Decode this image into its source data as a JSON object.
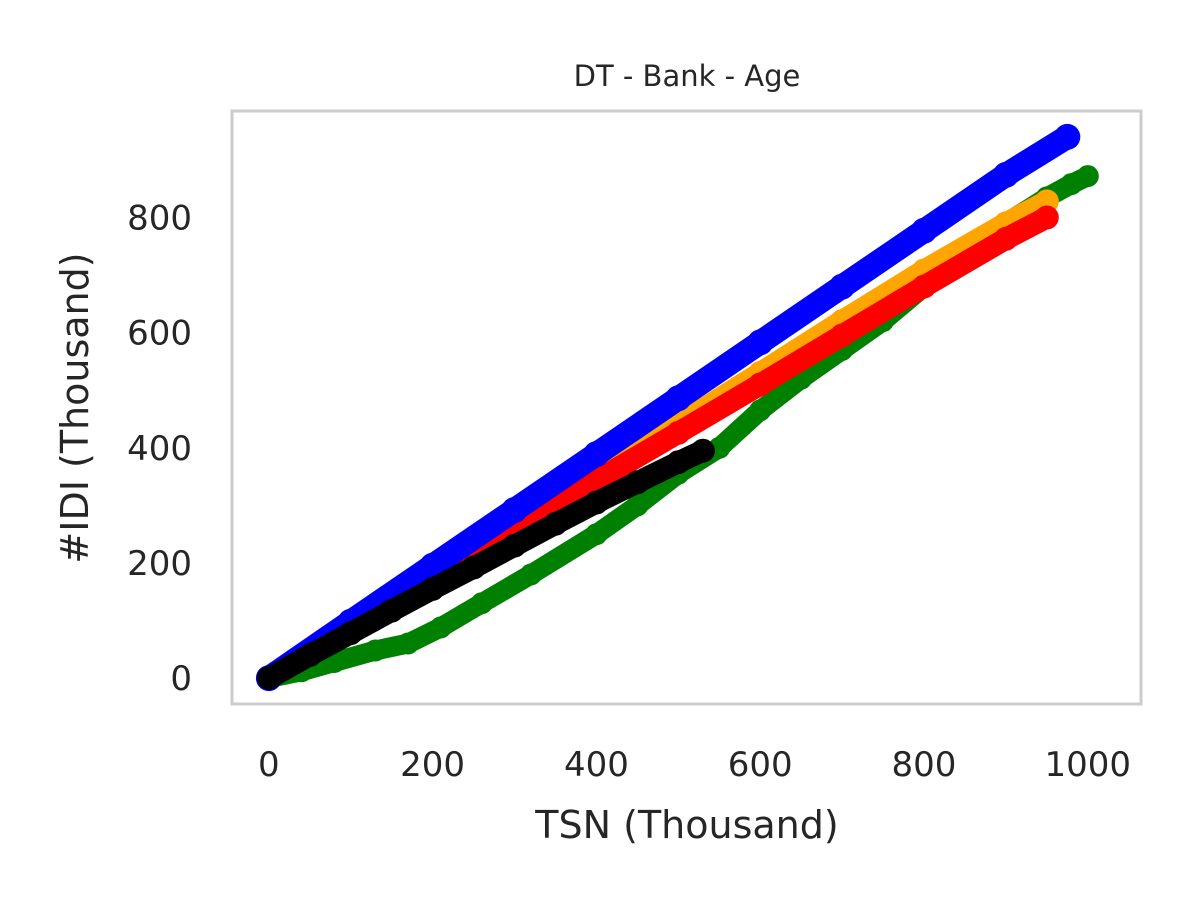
{
  "chart_data": {
    "type": "scatter",
    "title": "DT - Bank - Age",
    "xlabel": "TSN (Thousand)",
    "ylabel": "#IDI (Thousand)",
    "xlim": [
      -45,
      1065
    ],
    "ylim": [
      -45,
      985
    ],
    "xticks": [
      0,
      200,
      400,
      600,
      800,
      1000
    ],
    "yticks": [
      0,
      200,
      400,
      600,
      800
    ],
    "grid": false,
    "legend": "none",
    "series": [
      {
        "color": "#008000",
        "points": [
          [
            0,
            0
          ],
          [
            40,
            12
          ],
          [
            80,
            28
          ],
          [
            130,
            48
          ],
          [
            170,
            60
          ],
          [
            210,
            88
          ],
          [
            260,
            130
          ],
          [
            320,
            180
          ],
          [
            400,
            250
          ],
          [
            450,
            300
          ],
          [
            500,
            355
          ],
          [
            550,
            400
          ],
          [
            600,
            465
          ],
          [
            650,
            520
          ],
          [
            700,
            570
          ],
          [
            750,
            620
          ],
          [
            800,
            680
          ],
          [
            850,
            740
          ],
          [
            900,
            790
          ],
          [
            950,
            835
          ],
          [
            980,
            858
          ],
          [
            1000,
            872
          ]
        ]
      },
      {
        "color": "#FFA500",
        "points": [
          [
            0,
            0
          ],
          [
            100,
            88
          ],
          [
            200,
            176
          ],
          [
            300,
            264
          ],
          [
            400,
            352
          ],
          [
            500,
            440
          ],
          [
            600,
            530
          ],
          [
            700,
            620
          ],
          [
            800,
            708
          ],
          [
            900,
            790
          ],
          [
            950,
            828
          ]
        ]
      },
      {
        "color": "#FF0000",
        "points": [
          [
            0,
            0
          ],
          [
            100,
            87
          ],
          [
            200,
            172
          ],
          [
            300,
            258
          ],
          [
            400,
            343
          ],
          [
            500,
            426
          ],
          [
            600,
            510
          ],
          [
            700,
            595
          ],
          [
            800,
            680
          ],
          [
            900,
            763
          ],
          [
            950,
            800
          ]
        ]
      },
      {
        "color": "#0000FF",
        "points": [
          [
            0,
            0
          ],
          [
            100,
            98
          ],
          [
            200,
            195
          ],
          [
            300,
            292
          ],
          [
            400,
            389
          ],
          [
            500,
            486
          ],
          [
            600,
            583
          ],
          [
            700,
            680
          ],
          [
            800,
            777
          ],
          [
            900,
            874
          ],
          [
            975,
            940
          ]
        ]
      },
      {
        "color": "#000000",
        "points": [
          [
            0,
            0
          ],
          [
            50,
            40
          ],
          [
            100,
            78
          ],
          [
            150,
            117
          ],
          [
            200,
            155
          ],
          [
            250,
            192
          ],
          [
            300,
            230
          ],
          [
            350,
            268
          ],
          [
            400,
            305
          ],
          [
            450,
            340
          ],
          [
            500,
            375
          ],
          [
            530,
            395
          ]
        ]
      }
    ]
  }
}
